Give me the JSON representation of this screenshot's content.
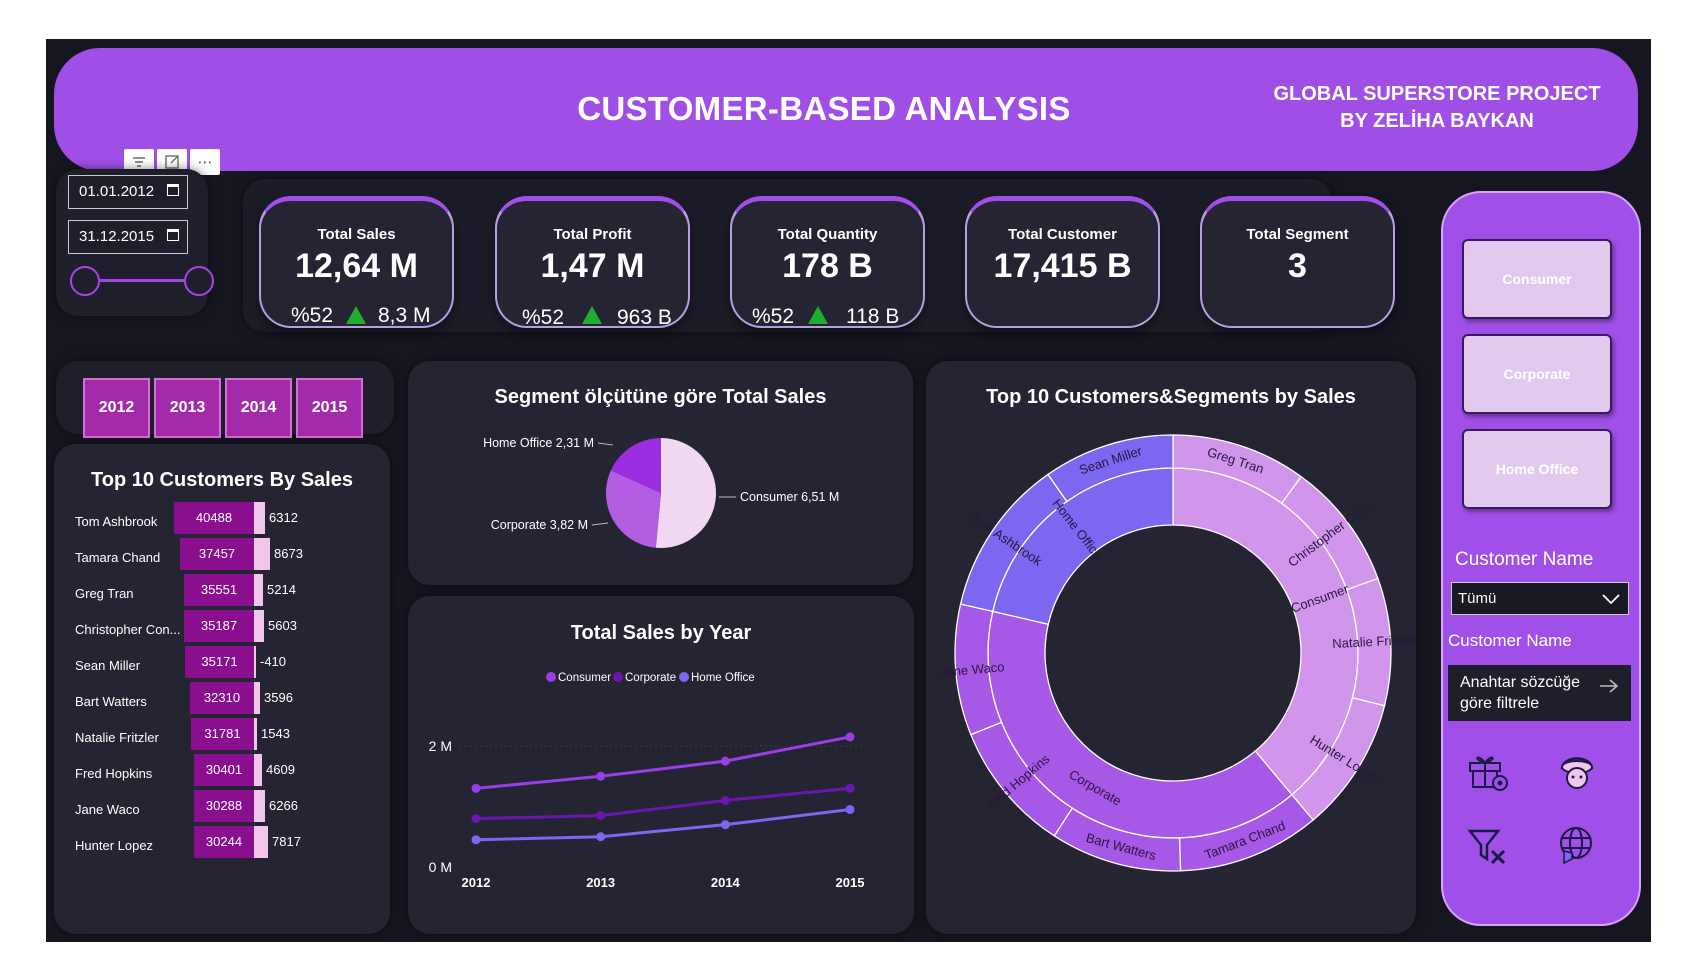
{
  "header": {
    "title": "CUSTOMER-BASED ANALYSIS",
    "subtitle_line1": "GLOBAL SUPERSTORE PROJECT",
    "subtitle_line2": "BY ZELİHA BAYKAN"
  },
  "date_filter": {
    "start": "01.01.2012",
    "end": "31.12.2015"
  },
  "kpis": [
    {
      "title": "Total Sales",
      "value": "12,64 M",
      "pct": "%52",
      "delta": "8,3 M"
    },
    {
      "title": "Total Profit",
      "value": "1,47 M",
      "pct": "%52",
      "delta": "963 B"
    },
    {
      "title": "Total Quantity",
      "value": "178 B",
      "pct": "%52",
      "delta": "118 B"
    },
    {
      "title": "Total Customer",
      "value": "17,415 B"
    },
    {
      "title": "Total Segment",
      "value": "3"
    }
  ],
  "years": [
    "2012",
    "2013",
    "2014",
    "2015"
  ],
  "top_customers": {
    "title": "Top 10 Customers By Sales",
    "rows": [
      {
        "name": "Tom Ashbrook",
        "sales": "40488",
        "profit": "6312"
      },
      {
        "name": "Tamara Chand",
        "sales": "37457",
        "profit": "8673"
      },
      {
        "name": "Greg Tran",
        "sales": "35551",
        "profit": "5214"
      },
      {
        "name": "Christopher Con...",
        "sales": "35187",
        "profit": "5603"
      },
      {
        "name": "Sean Miller",
        "sales": "35171",
        "profit": "-410"
      },
      {
        "name": "Bart Watters",
        "sales": "32310",
        "profit": "3596"
      },
      {
        "name": "Natalie Fritzler",
        "sales": "31781",
        "profit": "1543"
      },
      {
        "name": "Fred Hopkins",
        "sales": "30401",
        "profit": "4609"
      },
      {
        "name": "Jane Waco",
        "sales": "30288",
        "profit": "6266"
      },
      {
        "name": "Hunter Lopez",
        "sales": "30244",
        "profit": "7817"
      }
    ]
  },
  "pie": {
    "title": "Segment ölçütüne göre Total Sales",
    "labels": {
      "home_office": "Home Office 2,31 M",
      "corporate": "Corporate 3,82 M",
      "consumer": "Consumer 6,51 M"
    }
  },
  "line": {
    "title": "Total Sales by Year",
    "legend": [
      "Consumer",
      "Corporate",
      "Home Office"
    ],
    "y_ticks": [
      "2 M",
      "0 M"
    ],
    "x_ticks": [
      "2012",
      "2013",
      "2014",
      "2015"
    ]
  },
  "sunburst": {
    "title": "Top 10 Customers&Segments by Sales",
    "inner": {
      "consumer": "Consumer",
      "corporate": "Corporate",
      "home_office": "Home Office"
    },
    "outer": {
      "greg": "Greg Tran",
      "chris": "Christopher Con...",
      "natalie": "Natalie Fritzler",
      "hunter": "Hunter Lopez",
      "tamara": "Tamara Chand",
      "bart": "Bart Watters",
      "fred": "Fred Hopkins",
      "jane": "Jane Waco",
      "tom": "Tom Ashbrook",
      "sean": "Sean Miller"
    }
  },
  "segments": [
    "Consumer",
    "Corporate",
    "Home Office"
  ],
  "customer_filter": {
    "label": "Customer Name",
    "dropdown_value": "Tümü",
    "search_label": "Customer Name",
    "search_placeholder_line1": "Anahtar sözcüğe",
    "search_placeholder_line2": "göre filtrele"
  },
  "chart_data": [
    {
      "type": "bar",
      "title": "Top 10 Customers By Sales",
      "categories": [
        "Tom Ashbrook",
        "Tamara Chand",
        "Greg Tran",
        "Christopher Con...",
        "Sean Miller",
        "Bart Watters",
        "Natalie Fritzler",
        "Fred Hopkins",
        "Jane Waco",
        "Hunter Lopez"
      ],
      "series": [
        {
          "values": [
            40488,
            37457,
            35551,
            35187,
            35171,
            32310,
            31781,
            30401,
            30288,
            30244
          ]
        },
        {
          "values": [
            6312,
            8673,
            5214,
            5603,
            -410,
            3596,
            1543,
            4609,
            6266,
            7817
          ]
        }
      ]
    },
    {
      "type": "pie",
      "title": "Segment ölçütüne göre Total Sales",
      "categories": [
        "Consumer",
        "Corporate",
        "Home Office"
      ],
      "values": [
        6.51,
        3.82,
        2.31
      ],
      "colors": [
        "#f0d8f2",
        "#b25ee3",
        "#9a2ee0"
      ]
    },
    {
      "type": "line",
      "title": "Total Sales by Year",
      "x": [
        2012,
        2013,
        2014,
        2015
      ],
      "ylim": [
        0,
        2.5
      ],
      "series": [
        {
          "name": "Consumer",
          "values": [
            1.3,
            1.5,
            1.75,
            2.15
          ],
          "color": "#9b3ee8"
        },
        {
          "name": "Corporate",
          "values": [
            0.8,
            0.85,
            1.1,
            1.3
          ],
          "color": "#6a17b0"
        },
        {
          "name": "Home Office",
          "values": [
            0.45,
            0.5,
            0.7,
            0.95
          ],
          "color": "#7b67f0"
        }
      ]
    }
  ],
  "colors": {
    "header": "#9f4fe6",
    "panel": "#242432",
    "background": "#161621",
    "sales_bar": "#8a0f8e",
    "profit_bar": "#f0c6ec",
    "consumer": "#d195ec",
    "corporate": "#a658e6",
    "home_office": "#7b67f0"
  },
  "icons": [
    "filter-icon",
    "focus-mode-icon",
    "more-options-icon",
    "calendar-icon",
    "gift-icon",
    "support-agent-icon",
    "clear-filter-icon",
    "globe-icon",
    "arrow-right-icon",
    "chevron-down-icon"
  ]
}
